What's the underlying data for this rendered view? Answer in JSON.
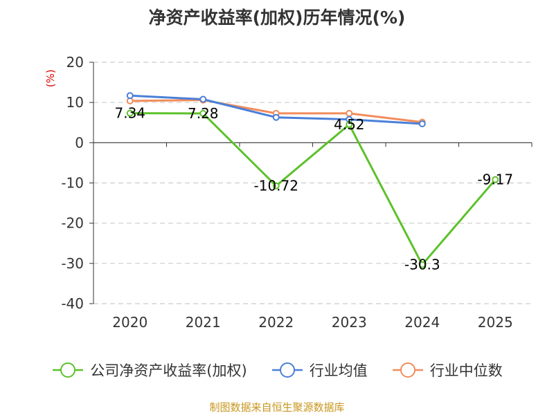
{
  "chart_data": {
    "type": "line",
    "title": "净资产收益率(加权)历年情况(%)",
    "ylabel": "(%)",
    "xlabel": "",
    "categories": [
      "2020",
      "2021",
      "2022",
      "2023",
      "2024",
      "2025"
    ],
    "ylim": [
      -40,
      20
    ],
    "yticks": [
      20,
      10,
      0,
      -10,
      -20,
      -30,
      -40
    ],
    "ytick_labels": [
      "20",
      "10",
      "0",
      "-10",
      "-20",
      "-30",
      "-40"
    ],
    "grid": true,
    "legend_position": "bottom",
    "series": [
      {
        "name": "公司净资产收益率(加权)",
        "color": "#5cc12a",
        "values": [
          7.34,
          7.28,
          -10.72,
          4.52,
          -30.3,
          -9.17
        ],
        "labels": [
          "7.34",
          "7.28",
          "-10.72",
          "4.52",
          "-30.3",
          "-9.17"
        ]
      },
      {
        "name": "行业均值",
        "color": "#4a7fd8",
        "values": [
          11.7,
          10.8,
          6.3,
          5.8,
          4.7,
          null
        ]
      },
      {
        "name": "行业中位数",
        "color": "#f28c5c",
        "values": [
          10.4,
          10.6,
          7.3,
          7.3,
          5.1,
          null
        ]
      }
    ]
  },
  "source_note": "制图数据来自恒生聚源数据库",
  "colors": {
    "axis": "#333333",
    "grid": "#cccccc",
    "unit_label": "#dd0000",
    "source_note": "#c8961e"
  }
}
